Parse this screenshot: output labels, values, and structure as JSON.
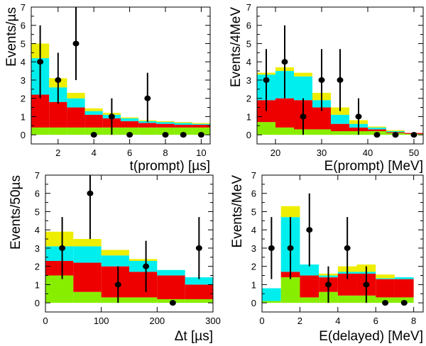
{
  "colors": {
    "green": "#88ee00",
    "red": "#ee0000",
    "cyan": "#00eeee",
    "yellow": "#eeee00",
    "points": "#000000"
  },
  "chart_data": [
    {
      "id": "tl",
      "type": "stacked-histogram",
      "xlabel": "t(prompt) [µs]",
      "ylabel": "Events/µs",
      "xlim": [
        0.5,
        10.5
      ],
      "ylim": [
        -0.5,
        7
      ],
      "xticks": [
        2,
        4,
        6,
        8,
        10
      ],
      "yticks": [
        0,
        1,
        2,
        3,
        4,
        5,
        6,
        7
      ],
      "bin_edges": [
        0.5,
        1.5,
        2.5,
        3.5,
        4.5,
        5.5,
        6.5,
        7.5,
        8.5,
        9.5,
        10.5
      ],
      "series": [
        {
          "name": "green",
          "values": [
            0.4,
            0.4,
            0.4,
            0.4,
            0.4,
            0.4,
            0.4,
            0.4,
            0.4,
            0.4
          ]
        },
        {
          "name": "red",
          "values": [
            1.8,
            1.4,
            1.1,
            0.7,
            0.5,
            0.35,
            0.25,
            0.2,
            0.15,
            0.15
          ]
        },
        {
          "name": "cyan",
          "values": [
            2.0,
            0.8,
            0.5,
            0.2,
            0.2,
            0.15,
            0.1,
            0.1,
            0.1,
            0.05
          ]
        },
        {
          "name": "yellow",
          "values": [
            0.8,
            0.5,
            0.3,
            0.15,
            0.1,
            0.05,
            0.05,
            0.05,
            0.05,
            0.05
          ]
        }
      ],
      "points": [
        {
          "x": 1,
          "y": 4,
          "err": [
            2.0,
            2.0
          ]
        },
        {
          "x": 2,
          "y": 3,
          "err": [
            1.3,
            1.5
          ]
        },
        {
          "x": 3,
          "y": 5,
          "err": [
            2.0,
            2.5
          ]
        },
        {
          "x": 4,
          "y": 0
        },
        {
          "x": 5,
          "y": 1,
          "err": [
            1.0,
            1.0
          ]
        },
        {
          "x": 6,
          "y": 0
        },
        {
          "x": 7,
          "y": 2,
          "err": [
            1.3,
            1.4
          ]
        },
        {
          "x": 8,
          "y": 0
        },
        {
          "x": 9,
          "y": 0
        },
        {
          "x": 10,
          "y": 0
        }
      ]
    },
    {
      "id": "tr",
      "type": "stacked-histogram",
      "xlabel": "E(prompt) [MeV]",
      "ylabel": "Events/4MeV",
      "xlim": [
        16,
        52
      ],
      "ylim": [
        -0.5,
        7
      ],
      "xticks": [
        20,
        30,
        40,
        50
      ],
      "yticks": [
        0,
        1,
        2,
        3,
        4,
        5,
        6,
        7
      ],
      "bin_edges": [
        16,
        20,
        24,
        28,
        32,
        36,
        40,
        44,
        48,
        52
      ],
      "series": [
        {
          "name": "green",
          "values": [
            0.7,
            0.4,
            0.3,
            0.3,
            0.2,
            0.2,
            0.2,
            0.1,
            0.05
          ]
        },
        {
          "name": "red",
          "values": [
            1.2,
            1.6,
            1.6,
            1.2,
            0.4,
            0.2,
            0.1,
            0.05,
            0.05
          ]
        },
        {
          "name": "cyan",
          "values": [
            1.4,
            1.5,
            1.3,
            0.4,
            0.5,
            0.2,
            0.1,
            0.05,
            0.0
          ]
        },
        {
          "name": "yellow",
          "values": [
            0.1,
            0.2,
            0.2,
            0.4,
            0.4,
            0.2,
            0.05,
            0.05,
            0.0
          ]
        }
      ],
      "points": [
        {
          "x": 18,
          "y": 3,
          "err": [
            1.7,
            1.7
          ]
        },
        {
          "x": 22,
          "y": 4,
          "err": [
            2.0,
            2.0
          ]
        },
        {
          "x": 26,
          "y": 1,
          "err": [
            1.0,
            1.0
          ]
        },
        {
          "x": 30,
          "y": 3,
          "err": [
            1.7,
            1.7
          ]
        },
        {
          "x": 34,
          "y": 3,
          "err": [
            1.7,
            1.7
          ]
        },
        {
          "x": 38,
          "y": 1,
          "err": [
            1.0,
            1.0
          ]
        },
        {
          "x": 42,
          "y": 0
        },
        {
          "x": 46,
          "y": 0
        },
        {
          "x": 50,
          "y": 0
        }
      ]
    },
    {
      "id": "bl",
      "type": "stacked-histogram",
      "xlabel": "Δt [µs]",
      "ylabel": "Events/50µs",
      "xlim": [
        0,
        300
      ],
      "ylim": [
        -0.5,
        7
      ],
      "xticks": [
        0,
        100,
        200,
        300
      ],
      "yticks": [
        0,
        1,
        2,
        3,
        4,
        5,
        6,
        7
      ],
      "bin_edges": [
        0,
        50,
        100,
        150,
        200,
        250,
        300
      ],
      "series": [
        {
          "name": "green",
          "values": [
            1.5,
            0.6,
            0.3,
            0.3,
            0.2,
            0.2
          ]
        },
        {
          "name": "red",
          "values": [
            0.8,
            1.6,
            1.7,
            1.4,
            1.3,
            0.8
          ]
        },
        {
          "name": "cyan",
          "values": [
            0.8,
            0.9,
            0.6,
            0.6,
            0.3,
            0.4
          ]
        },
        {
          "name": "yellow",
          "values": [
            0.8,
            0.4,
            0.3,
            0.1,
            0.0,
            0.0
          ]
        }
      ],
      "points": [
        {
          "x": 30,
          "y": 3,
          "err": [
            1.7,
            1.7
          ]
        },
        {
          "x": 80,
          "y": 6,
          "err": [
            2.5,
            2.5
          ]
        },
        {
          "x": 130,
          "y": 1,
          "err": [
            1.0,
            1.0
          ]
        },
        {
          "x": 180,
          "y": 2,
          "err": [
            1.4,
            1.4
          ]
        },
        {
          "x": 228,
          "y": 0
        },
        {
          "x": 275,
          "y": 3,
          "err": [
            1.7,
            1.7
          ]
        }
      ]
    },
    {
      "id": "br",
      "type": "stacked-histogram",
      "xlabel": "E(delayed) [MeV]",
      "ylabel": "Events/MeV",
      "xlim": [
        0,
        8.5
      ],
      "ylim": [
        -0.5,
        7
      ],
      "xticks": [
        0,
        2,
        4,
        6,
        8
      ],
      "yticks": [
        0,
        1,
        2,
        3,
        4,
        5,
        6,
        7
      ],
      "bin_edges": [
        0,
        1,
        2,
        3,
        4,
        5,
        6,
        7,
        8
      ],
      "series": [
        {
          "name": "green",
          "values": [
            0.1,
            1.4,
            0.3,
            0.6,
            0.4,
            0.4,
            0.3,
            0.3
          ]
        },
        {
          "name": "red",
          "values": [
            0.0,
            0.3,
            1.2,
            0.8,
            1.2,
            1.2,
            1.0,
            1.0
          ]
        },
        {
          "name": "cyan",
          "values": [
            0.7,
            3.0,
            0.6,
            0.1,
            0.1,
            0.1,
            0.05,
            0.1
          ]
        },
        {
          "name": "yellow",
          "values": [
            0.0,
            0.6,
            0.0,
            0.1,
            0.3,
            0.4,
            0.2,
            0.0
          ]
        }
      ],
      "points": [
        {
          "x": 0.5,
          "y": 3,
          "err": [
            1.7,
            1.7
          ]
        },
        {
          "x": 1.5,
          "y": 3,
          "err": [
            1.7,
            1.7
          ]
        },
        {
          "x": 2.5,
          "y": 4,
          "err": [
            2.0,
            2.0
          ]
        },
        {
          "x": 3.5,
          "y": 1,
          "err": [
            1.0,
            1.0
          ]
        },
        {
          "x": 4.5,
          "y": 3,
          "err": [
            1.7,
            1.7
          ]
        },
        {
          "x": 5.5,
          "y": 1,
          "err": [
            1.0,
            1.0
          ]
        },
        {
          "x": 6.5,
          "y": 0
        },
        {
          "x": 7.5,
          "y": 0
        }
      ]
    }
  ]
}
